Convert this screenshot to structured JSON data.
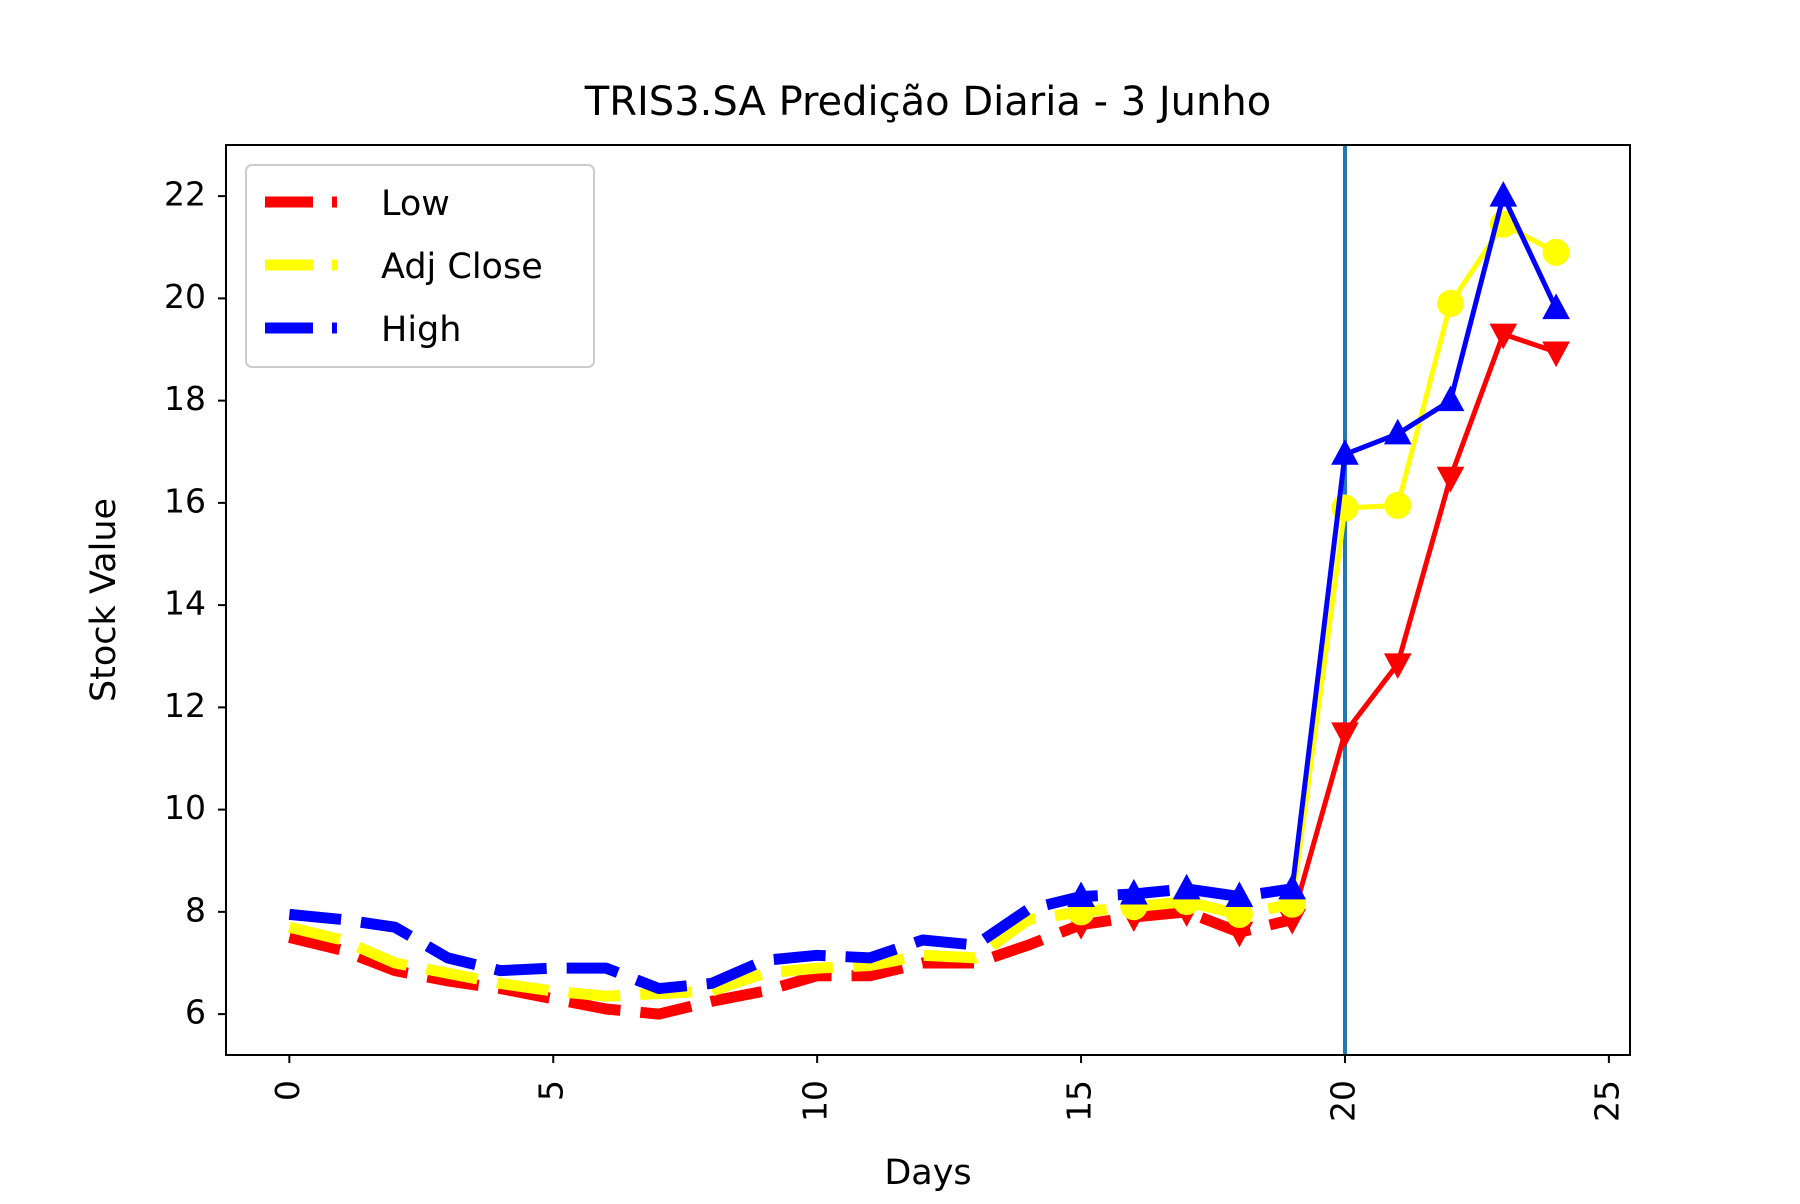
{
  "chart_data": {
    "type": "line",
    "title": "TRIS3.SA Predição Diaria - 3 Junho",
    "xlabel": "Days",
    "ylabel": "Stock Value",
    "xlim": [
      -1.2,
      25.4
    ],
    "ylim": [
      5.2,
      23.0
    ],
    "xticks": [
      "0",
      "5",
      "10",
      "15",
      "20",
      "25"
    ],
    "yticks": [
      "6",
      "8",
      "10",
      "12",
      "14",
      "16",
      "18",
      "20",
      "22"
    ],
    "grid": false,
    "legend_position": "top-left",
    "prediction_start_x": 20,
    "prediction_line_color": "#1f77b4",
    "series": [
      {
        "name": "Low",
        "color": "#ff0000",
        "marker": "triangle-down",
        "historical": {
          "x": [
            0,
            1,
            2,
            3,
            4,
            5,
            6,
            7,
            8,
            9,
            10,
            11,
            12,
            13,
            14,
            15,
            16,
            17,
            18,
            19
          ],
          "y": [
            7.5,
            7.25,
            6.85,
            6.65,
            6.5,
            6.3,
            6.1,
            6.0,
            6.25,
            6.45,
            6.75,
            6.75,
            7.0,
            7.0,
            7.35,
            7.75,
            7.9,
            8.0,
            7.6,
            7.85
          ]
        },
        "predicted": {
          "x": [
            19,
            20,
            21,
            22,
            23,
            24
          ],
          "y": [
            7.85,
            11.5,
            12.85,
            16.5,
            19.3,
            18.95
          ]
        }
      },
      {
        "name": "Adj Close",
        "color": "#ffff00",
        "marker": "circle",
        "historical": {
          "x": [
            0,
            1,
            2,
            3,
            4,
            5,
            6,
            7,
            8,
            9,
            10,
            11,
            12,
            13,
            14,
            15,
            16,
            17,
            18,
            19
          ],
          "y": [
            7.7,
            7.45,
            7.0,
            6.8,
            6.6,
            6.45,
            6.35,
            6.4,
            6.45,
            6.8,
            6.9,
            6.95,
            7.15,
            7.1,
            7.85,
            8.0,
            8.1,
            8.2,
            7.95,
            8.15
          ]
        },
        "predicted": {
          "x": [
            19,
            20,
            21,
            22,
            23,
            24
          ],
          "y": [
            8.15,
            15.9,
            15.95,
            19.9,
            21.45,
            20.9
          ]
        }
      },
      {
        "name": "High",
        "color": "#0000ff",
        "marker": "triangle-up",
        "historical": {
          "x": [
            0,
            1,
            2,
            3,
            4,
            5,
            6,
            7,
            8,
            9,
            10,
            11,
            12,
            13,
            14,
            15,
            16,
            17,
            18,
            19
          ],
          "y": [
            7.95,
            7.85,
            7.7,
            7.1,
            6.85,
            6.9,
            6.9,
            6.5,
            6.6,
            7.05,
            7.15,
            7.1,
            7.45,
            7.35,
            8.05,
            8.3,
            8.35,
            8.45,
            8.3,
            8.45
          ]
        },
        "predicted": {
          "x": [
            19,
            20,
            21,
            22,
            23,
            24
          ],
          "y": [
            8.45,
            16.95,
            17.35,
            18.0,
            22.0,
            19.8
          ]
        }
      }
    ]
  }
}
